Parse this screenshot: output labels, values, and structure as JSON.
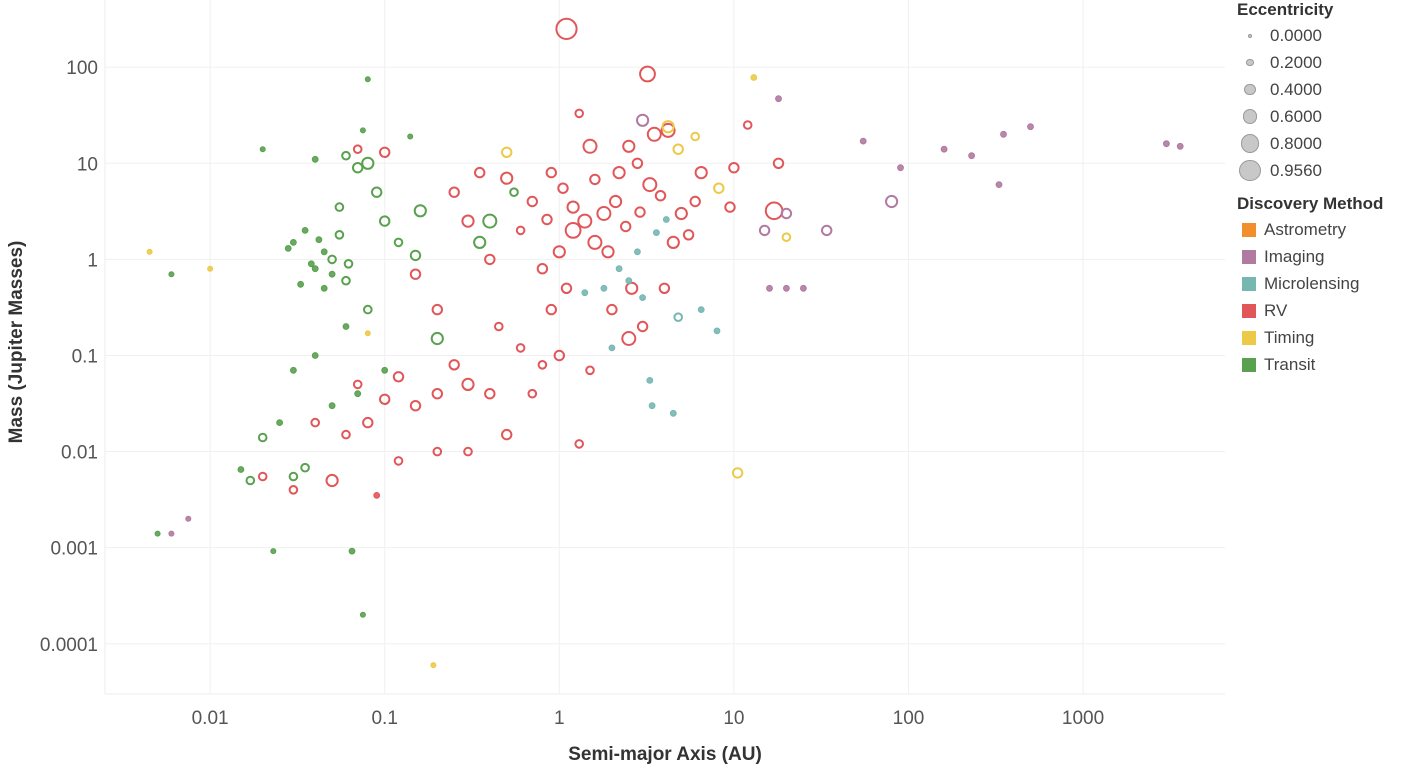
{
  "chart_data": {
    "type": "scatter",
    "xlabel": "Semi-major Axis (AU)",
    "ylabel": "Mass (Jupiter Masses)",
    "x_scale": "log",
    "y_scale": "log",
    "xlim": [
      0.0025,
      6500
    ],
    "ylim": [
      3e-05,
      500
    ],
    "x_ticks": [
      {
        "value": 0.01,
        "label": "0.01"
      },
      {
        "value": 0.1,
        "label": "0.1"
      },
      {
        "value": 1,
        "label": "1"
      },
      {
        "value": 10,
        "label": "10"
      },
      {
        "value": 100,
        "label": "100"
      },
      {
        "value": 1000,
        "label": "1000"
      }
    ],
    "y_ticks": [
      {
        "value": 0.0001,
        "label": "0.0001"
      },
      {
        "value": 0.001,
        "label": "0.001"
      },
      {
        "value": 0.01,
        "label": "0.01"
      },
      {
        "value": 0.1,
        "label": "0.1"
      },
      {
        "value": 1,
        "label": "1"
      },
      {
        "value": 10,
        "label": "10"
      },
      {
        "value": 100,
        "label": "100"
      }
    ],
    "grid": true,
    "size_legend": {
      "title": "Eccentricity",
      "entries": [
        "0.0000",
        "0.2000",
        "0.4000",
        "0.6000",
        "0.8000",
        "0.9560"
      ]
    },
    "color_legend": {
      "title": "Discovery Method",
      "entries": [
        {
          "label": "Astrometry",
          "color": "#f28e2b"
        },
        {
          "label": "Imaging",
          "color": "#b07aa1"
        },
        {
          "label": "Microlensing",
          "color": "#76b7b2"
        },
        {
          "label": "RV",
          "color": "#e15759"
        },
        {
          "label": "Timing",
          "color": "#edc948"
        },
        {
          "label": "Transit",
          "color": "#59a14f"
        }
      ]
    },
    "series": [
      {
        "name": "RV",
        "points": [
          [
            1.1,
            250,
            0.9
          ],
          [
            3.2,
            85,
            0.6
          ],
          [
            2.5,
            15,
            0.4
          ],
          [
            3.5,
            20,
            0.5
          ],
          [
            4.2,
            22,
            0.5
          ],
          [
            1.5,
            15,
            0.5
          ],
          [
            2.2,
            8,
            0.4
          ],
          [
            1.8,
            3,
            0.5
          ],
          [
            1.2,
            2,
            0.6
          ],
          [
            1.6,
            1.5,
            0.5
          ],
          [
            1.0,
            1.2,
            0.4
          ],
          [
            0.8,
            0.8,
            0.3
          ],
          [
            2.6,
            0.5,
            0.4
          ],
          [
            5.0,
            3.0,
            0.4
          ],
          [
            6.5,
            8,
            0.4
          ],
          [
            10,
            9,
            0.3
          ],
          [
            12,
            25,
            0.2
          ],
          [
            18,
            10,
            0.3
          ],
          [
            17,
            3.2,
            0.7
          ],
          [
            9.5,
            3.5,
            0.3
          ],
          [
            0.5,
            7,
            0.4
          ],
          [
            0.35,
            8,
            0.3
          ],
          [
            0.25,
            5,
            0.3
          ],
          [
            0.3,
            2.5,
            0.4
          ],
          [
            0.4,
            1.0,
            0.3
          ],
          [
            0.15,
            0.7,
            0.3
          ],
          [
            0.2,
            0.3,
            0.3
          ],
          [
            0.45,
            0.2,
            0.2
          ],
          [
            0.6,
            0.12,
            0.2
          ],
          [
            0.8,
            0.08,
            0.2
          ],
          [
            1.0,
            0.1,
            0.3
          ],
          [
            1.5,
            0.07,
            0.2
          ],
          [
            0.3,
            0.05,
            0.4
          ],
          [
            0.2,
            0.04,
            0.3
          ],
          [
            0.15,
            0.03,
            0.3
          ],
          [
            0.1,
            0.035,
            0.3
          ],
          [
            0.08,
            0.02,
            0.3
          ],
          [
            0.06,
            0.015,
            0.2
          ],
          [
            0.04,
            0.02,
            0.2
          ],
          [
            0.07,
            0.05,
            0.2
          ],
          [
            0.05,
            0.005,
            0.4
          ],
          [
            0.03,
            0.004,
            0.2
          ],
          [
            0.02,
            0.0055,
            0.2
          ],
          [
            0.09,
            0.0035,
            0.1
          ],
          [
            0.12,
            0.008,
            0.2
          ],
          [
            0.2,
            0.01,
            0.2
          ],
          [
            0.3,
            0.01,
            0.2
          ],
          [
            0.5,
            0.015,
            0.3
          ],
          [
            0.7,
            0.04,
            0.2
          ],
          [
            2.0,
            0.3,
            0.3
          ],
          [
            2.5,
            0.15,
            0.5
          ],
          [
            3.0,
            0.2,
            0.3
          ],
          [
            4.0,
            0.5,
            0.3
          ],
          [
            4.5,
            1.5,
            0.4
          ],
          [
            5.5,
            1.8,
            0.3
          ],
          [
            6.0,
            4,
            0.3
          ],
          [
            3.3,
            6,
            0.5
          ],
          [
            2.8,
            10,
            0.3
          ],
          [
            1.3,
            33,
            0.2
          ],
          [
            0.9,
            8,
            0.3
          ],
          [
            0.7,
            4,
            0.3
          ],
          [
            0.6,
            2,
            0.2
          ],
          [
            1.1,
            0.5,
            0.3
          ],
          [
            0.9,
            0.3,
            0.3
          ],
          [
            1.3,
            0.012,
            0.2
          ],
          [
            0.25,
            0.08,
            0.3
          ],
          [
            0.4,
            0.04,
            0.3
          ],
          [
            0.12,
            0.06,
            0.3
          ],
          [
            0.1,
            13,
            0.3
          ],
          [
            0.07,
            14,
            0.2
          ],
          [
            1.2,
            3.5,
            0.4
          ],
          [
            1.4,
            2.5,
            0.5
          ],
          [
            1.9,
            1.2,
            0.4
          ],
          [
            2.1,
            4,
            0.4
          ],
          [
            2.4,
            2.2,
            0.3
          ],
          [
            0.85,
            2.6,
            0.3
          ],
          [
            1.05,
            5.5,
            0.3
          ],
          [
            1.6,
            6.8,
            0.3
          ],
          [
            2.9,
            3.1,
            0.3
          ],
          [
            3.8,
            4.6,
            0.3
          ]
        ]
      },
      {
        "name": "Transit",
        "points": [
          [
            0.05,
            1.0,
            0.2
          ],
          [
            0.04,
            0.8,
            0.1
          ],
          [
            0.03,
            1.5,
            0.1
          ],
          [
            0.06,
            0.6,
            0.2
          ],
          [
            0.045,
            1.2,
            0.1
          ],
          [
            0.035,
            2.0,
            0.1
          ],
          [
            0.055,
            3.5,
            0.2
          ],
          [
            0.07,
            9,
            0.3
          ],
          [
            0.08,
            10,
            0.4
          ],
          [
            0.09,
            5,
            0.3
          ],
          [
            0.06,
            12,
            0.2
          ],
          [
            0.04,
            11,
            0.1
          ],
          [
            0.1,
            2.5,
            0.3
          ],
          [
            0.12,
            1.5,
            0.2
          ],
          [
            0.16,
            3.2,
            0.4
          ],
          [
            0.2,
            0.15,
            0.4
          ],
          [
            0.15,
            1.1,
            0.3
          ],
          [
            0.08,
            0.3,
            0.2
          ],
          [
            0.06,
            0.2,
            0.1
          ],
          [
            0.04,
            0.1,
            0.1
          ],
          [
            0.03,
            0.07,
            0.1
          ],
          [
            0.02,
            0.014,
            0.2
          ],
          [
            0.017,
            0.005,
            0.2
          ],
          [
            0.03,
            0.0055,
            0.2
          ],
          [
            0.025,
            0.02,
            0.1
          ],
          [
            0.05,
            0.03,
            0.1
          ],
          [
            0.07,
            0.04,
            0.1
          ],
          [
            0.1,
            0.07,
            0.1
          ],
          [
            0.035,
            0.0068,
            0.2
          ],
          [
            0.015,
            0.0065,
            0.1
          ],
          [
            0.005,
            0.0014,
            0.05
          ],
          [
            0.023,
            0.00092,
            0.05
          ],
          [
            0.065,
            0.00092,
            0.1
          ],
          [
            0.075,
            0.0002,
            0.05
          ],
          [
            0.08,
            75,
            0.05
          ],
          [
            0.14,
            19,
            0.05
          ],
          [
            0.075,
            22,
            0.05
          ],
          [
            0.02,
            14,
            0.05
          ],
          [
            0.006,
            0.7,
            0.05
          ],
          [
            0.4,
            2.5,
            0.5
          ],
          [
            0.35,
            1.5,
            0.4
          ],
          [
            0.55,
            5,
            0.2
          ],
          [
            0.045,
            0.5,
            0.1
          ],
          [
            0.05,
            0.7,
            0.1
          ],
          [
            0.055,
            1.8,
            0.2
          ],
          [
            0.038,
            0.9,
            0.1
          ],
          [
            0.042,
            1.6,
            0.1
          ],
          [
            0.062,
            0.9,
            0.2
          ],
          [
            0.028,
            1.3,
            0.1
          ],
          [
            0.033,
            0.55,
            0.1
          ]
        ]
      },
      {
        "name": "Imaging",
        "points": [
          [
            3,
            28,
            0.4
          ],
          [
            20,
            3,
            0.3
          ],
          [
            80,
            4,
            0.4
          ],
          [
            15,
            2,
            0.3
          ],
          [
            34,
            2,
            0.3
          ],
          [
            55,
            17,
            0.1
          ],
          [
            90,
            9,
            0.1
          ],
          [
            160,
            14,
            0.1
          ],
          [
            230,
            12,
            0.1
          ],
          [
            330,
            6,
            0.1
          ],
          [
            350,
            20,
            0.1
          ],
          [
            500,
            24,
            0.1
          ],
          [
            3000,
            16,
            0.1
          ],
          [
            3600,
            15,
            0.1
          ],
          [
            18,
            47,
            0.1
          ],
          [
            16,
            0.5,
            0.1
          ],
          [
            20,
            0.5,
            0.1
          ],
          [
            25,
            0.5,
            0.1
          ],
          [
            0.006,
            0.0014,
            0.05
          ],
          [
            0.0075,
            0.002,
            0.05
          ]
        ]
      },
      {
        "name": "Microlensing",
        "points": [
          [
            2.5,
            0.6,
            0.1
          ],
          [
            3,
            0.4,
            0.1
          ],
          [
            3.4,
            0.03,
            0.1
          ],
          [
            4.5,
            0.025,
            0.1
          ],
          [
            6.5,
            0.3,
            0.1
          ],
          [
            8,
            0.18,
            0.1
          ],
          [
            3.3,
            0.055,
            0.1
          ],
          [
            4.8,
            0.25,
            0.2
          ],
          [
            1.8,
            0.5,
            0.1
          ],
          [
            2.2,
            0.8,
            0.1
          ],
          [
            2.8,
            1.2,
            0.1
          ],
          [
            3.6,
            1.9,
            0.1
          ],
          [
            4.1,
            2.6,
            0.1
          ],
          [
            1.4,
            0.45,
            0.1
          ],
          [
            2.0,
            0.12,
            0.1
          ]
        ]
      },
      {
        "name": "Timing",
        "points": [
          [
            13,
            78,
            0.1
          ],
          [
            10.5,
            0.006,
            0.3
          ],
          [
            0.19,
            6e-05,
            0.05
          ],
          [
            0.0045,
            1.2,
            0.05
          ],
          [
            0.01,
            0.8,
            0.05
          ],
          [
            0.5,
            13,
            0.3
          ],
          [
            4.2,
            24,
            0.4
          ],
          [
            4.8,
            14,
            0.3
          ],
          [
            6,
            19,
            0.2
          ],
          [
            20,
            1.7,
            0.2
          ],
          [
            8.2,
            5.5,
            0.3
          ],
          [
            0.08,
            0.17,
            0.05
          ]
        ]
      }
    ]
  }
}
